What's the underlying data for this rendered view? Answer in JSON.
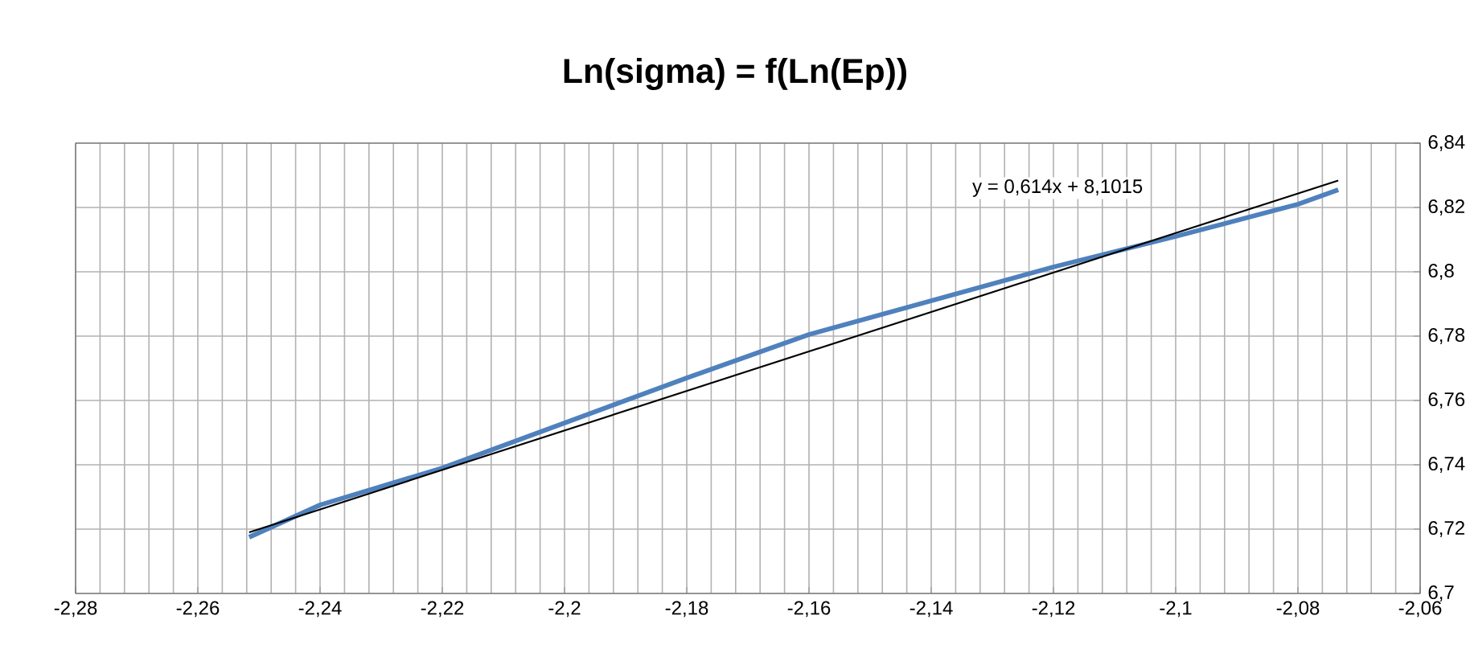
{
  "chart_data": {
    "type": "line",
    "title": "Ln(sigma) = f(Ln(Ep))",
    "xlim": [
      -2.28,
      -2.06
    ],
    "xticks": [
      {
        "value": -2.28,
        "label": "-2,28"
      },
      {
        "value": -2.26,
        "label": "-2,26"
      },
      {
        "value": -2.24,
        "label": "-2,24"
      },
      {
        "value": -2.22,
        "label": "-2,22"
      },
      {
        "value": -2.2,
        "label": "-2,2"
      },
      {
        "value": -2.18,
        "label": "-2,18"
      },
      {
        "value": -2.16,
        "label": "-2,16"
      },
      {
        "value": -2.14,
        "label": "-2,14"
      },
      {
        "value": -2.12,
        "label": "-2,12"
      },
      {
        "value": -2.1,
        "label": "-2,1"
      },
      {
        "value": -2.08,
        "label": "-2,08"
      },
      {
        "value": -2.06,
        "label": "-2,06"
      }
    ],
    "ylim": [
      6.7,
      6.84
    ],
    "yticks": [
      {
        "value": 6.7,
        "label": "6,7"
      },
      {
        "value": 6.72,
        "label": "6,72"
      },
      {
        "value": 6.74,
        "label": "6,74"
      },
      {
        "value": 6.76,
        "label": "6,76"
      },
      {
        "value": 6.78,
        "label": "6,78"
      },
      {
        "value": 6.8,
        "label": "6,8"
      },
      {
        "value": 6.82,
        "label": "6,82"
      },
      {
        "value": 6.84,
        "label": "6,84"
      }
    ],
    "grid": true,
    "series": [
      {
        "color": "#4f81bd",
        "x": [
          -2.2516,
          -2.24,
          -2.22,
          -2.2,
          -2.18,
          -2.16,
          -2.14,
          -2.12,
          -2.1,
          -2.08,
          -2.0734
        ],
        "values": [
          6.7175,
          6.7275,
          6.739,
          6.753,
          6.767,
          6.7805,
          6.791,
          6.8015,
          6.811,
          6.821,
          6.8255
        ]
      },
      {
        "color": "#000000",
        "x": [
          -2.2516,
          -2.0734
        ],
        "values": [
          6.719,
          6.8284
        ]
      }
    ],
    "annotations": [
      "y = 0,614x + 8,1015"
    ]
  }
}
